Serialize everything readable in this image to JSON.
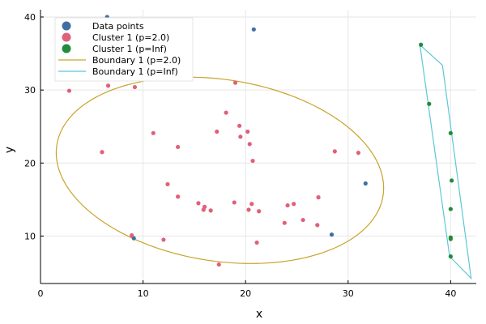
{
  "chart_data": {
    "type": "scatter",
    "xlabel": "x",
    "ylabel": "y",
    "xlim": [
      0,
      42.5
    ],
    "ylim": [
      3.5,
      41
    ],
    "x_ticks": [
      0,
      10,
      20,
      30,
      40
    ],
    "y_ticks": [
      10,
      20,
      30,
      40
    ],
    "grid": true,
    "legend_position": "top-left",
    "series": [
      {
        "name": "Data points",
        "kind": "scatter",
        "color": "#3f6fa5",
        "points": [
          [
            6.5,
            40.0
          ],
          [
            20.8,
            38.3
          ],
          [
            31.7,
            17.2
          ],
          [
            28.4,
            10.2
          ],
          [
            9.1,
            9.7
          ]
        ]
      },
      {
        "name": "Cluster 1 (p=2.0)",
        "kind": "scatter",
        "color": "#e0607a",
        "points": [
          [
            2.8,
            29.9
          ],
          [
            6.6,
            30.6
          ],
          [
            9.2,
            30.4
          ],
          [
            19.0,
            31.0
          ],
          [
            18.1,
            26.9
          ],
          [
            19.4,
            25.1
          ],
          [
            20.2,
            24.3
          ],
          [
            17.2,
            24.3
          ],
          [
            19.5,
            23.6
          ],
          [
            20.4,
            22.6
          ],
          [
            11.0,
            24.1
          ],
          [
            13.4,
            22.2
          ],
          [
            6.0,
            21.5
          ],
          [
            28.7,
            21.6
          ],
          [
            31.0,
            21.4
          ],
          [
            20.7,
            20.3
          ],
          [
            12.4,
            17.1
          ],
          [
            13.4,
            15.4
          ],
          [
            15.4,
            14.5
          ],
          [
            16.0,
            14.0
          ],
          [
            16.6,
            13.5
          ],
          [
            15.9,
            13.6
          ],
          [
            18.9,
            14.6
          ],
          [
            20.6,
            14.4
          ],
          [
            20.3,
            13.6
          ],
          [
            21.3,
            13.4
          ],
          [
            24.1,
            14.2
          ],
          [
            24.7,
            14.4
          ],
          [
            27.1,
            15.3
          ],
          [
            25.6,
            12.2
          ],
          [
            27.0,
            11.5
          ],
          [
            23.8,
            11.8
          ],
          [
            8.9,
            10.1
          ],
          [
            12.0,
            9.5
          ],
          [
            21.1,
            9.1
          ],
          [
            17.4,
            6.1
          ]
        ]
      },
      {
        "name": "Cluster 1 (p=Inf)",
        "kind": "scatter",
        "color": "#228b3c",
        "points": [
          [
            37.1,
            36.2
          ],
          [
            37.9,
            28.1
          ],
          [
            40.0,
            24.1
          ],
          [
            40.1,
            17.6
          ],
          [
            40.0,
            13.7
          ],
          [
            40.0,
            9.8
          ],
          [
            40.0,
            9.6
          ],
          [
            40.0,
            7.2
          ]
        ]
      },
      {
        "name": "Boundary 1 (p=2.0)",
        "kind": "curve",
        "color": "#c9a32a",
        "ellipse": {
          "center": [
            17.5,
            19.0
          ],
          "semi_major": 16.4,
          "semi_minor": 12.2,
          "angle_deg": -20
        }
      },
      {
        "name": "Boundary 1 (p=Inf)",
        "kind": "line",
        "color": "#5cc8d6",
        "points": [
          [
            37.0,
            36.2
          ],
          [
            39.2,
            33.4
          ],
          [
            42.0,
            4.2
          ],
          [
            39.9,
            7.2
          ],
          [
            37.0,
            36.2
          ]
        ]
      }
    ]
  }
}
